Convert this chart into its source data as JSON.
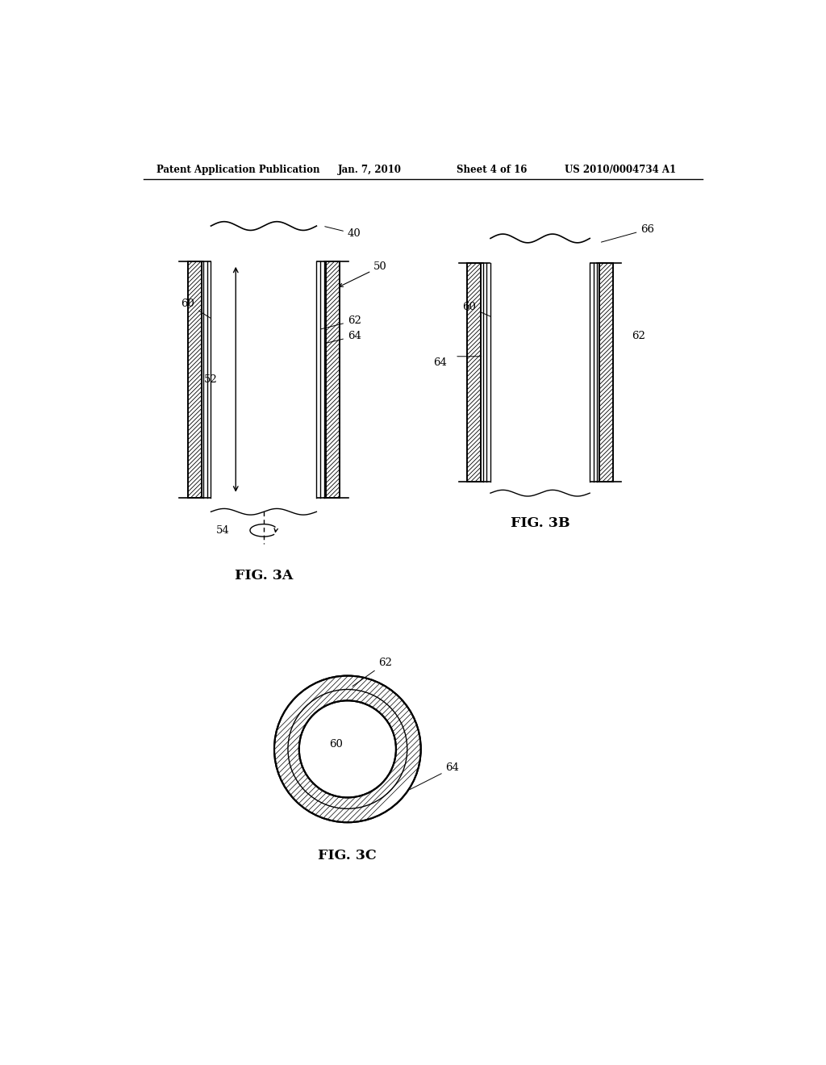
{
  "bg_color": "#ffffff",
  "header_text": "Patent Application Publication",
  "header_date": "Jan. 7, 2010",
  "header_sheet": "Sheet 4 of 16",
  "header_patent": "US 2010/0004734 A1",
  "fig3a_label": "FIG. 3A",
  "fig3b_label": "FIG. 3B",
  "fig3c_label": "FIG. 3C",
  "line_color": "#000000",
  "bg_white": "#ffffff"
}
